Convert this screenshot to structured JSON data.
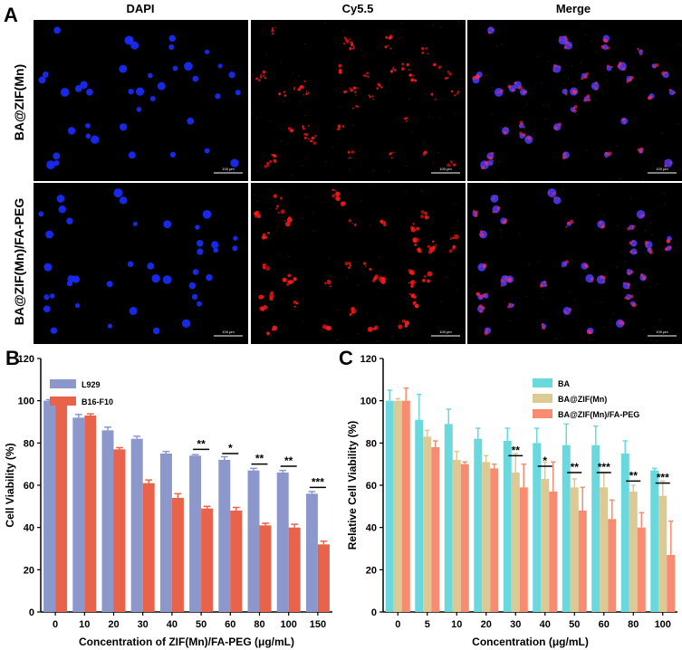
{
  "panel_a": {
    "letter": "A",
    "columns": [
      "DAPI",
      "Cy5.5",
      "Merge"
    ],
    "rows": [
      "BA@ZIF(Mn)",
      "BA@ZIF(Mn)/FA-PEG"
    ],
    "scale_bar_label": "100 μm",
    "channel_colors": {
      "DAPI": "#1a2cff",
      "Cy5.5": "#ff1a1a",
      "Merge": "#c040ff"
    }
  },
  "chart_data": [
    {
      "type": "bar",
      "panel": "B",
      "categories": [
        "0",
        "10",
        "20",
        "30",
        "40",
        "50",
        "60",
        "80",
        "100",
        "150"
      ],
      "series": [
        {
          "name": "L929",
          "color": "#8c97cc",
          "values": [
            100,
            92,
            86,
            82,
            75,
            74,
            72,
            67,
            66,
            56
          ],
          "errors": [
            0.5,
            1.5,
            1.5,
            1.2,
            1.0,
            0.5,
            1.5,
            1.0,
            1.0,
            1.0
          ]
        },
        {
          "name": "B16-F10",
          "color": "#e8634a",
          "values": [
            100,
            93,
            77,
            61,
            54,
            49,
            48,
            41,
            40,
            32
          ],
          "errors": [
            1.5,
            0.8,
            0.8,
            1.5,
            2.0,
            1.0,
            1.5,
            1.0,
            1.5,
            1.5
          ]
        }
      ],
      "xlabel": "Concentration of ZIF(Mn)/FA-PEG (μg/mL)",
      "ylabel": "Cell Viability (%)",
      "ylim": [
        0,
        120
      ],
      "yticks": [
        0,
        20,
        40,
        60,
        80,
        100,
        120
      ],
      "legend": "top-left",
      "significance": [
        {
          "category": "50",
          "label": "**",
          "y": 77
        },
        {
          "category": "60",
          "label": "*",
          "y": 75
        },
        {
          "category": "80",
          "label": "**",
          "y": 70
        },
        {
          "category": "100",
          "label": "**",
          "y": 69
        },
        {
          "category": "150",
          "label": "***",
          "y": 59
        }
      ]
    },
    {
      "type": "bar",
      "panel": "C",
      "categories": [
        "0",
        "5",
        "10",
        "20",
        "30",
        "40",
        "50",
        "60",
        "80",
        "100"
      ],
      "series": [
        {
          "name": "BA",
          "color": "#6ad9de",
          "values": [
            100,
            91,
            89,
            82,
            81,
            80,
            79,
            79,
            75,
            67
          ],
          "errors": [
            5,
            12,
            7,
            5,
            6,
            7,
            10,
            9,
            6,
            1
          ]
        },
        {
          "name": "BA@ZIF(Mn)",
          "color": "#ddc993",
          "values": [
            100,
            83,
            72,
            71,
            66,
            63,
            59,
            59,
            57,
            55
          ],
          "errors": [
            1,
            3,
            4,
            3,
            9,
            8,
            4,
            7,
            3,
            7
          ]
        },
        {
          "name": "BA@ZIF(Mn)/FA-PEG",
          "color": "#f88c70",
          "values": [
            100,
            78,
            70,
            68,
            59,
            57,
            48,
            44,
            40,
            27
          ],
          "errors": [
            6,
            3,
            1,
            2,
            11,
            14,
            11,
            9,
            7,
            16
          ]
        }
      ],
      "xlabel": "Concentration (μg/mL)",
      "ylabel": "Relative Cell Viability (%)",
      "ylim": [
        0,
        120
      ],
      "yticks": [
        0,
        20,
        40,
        60,
        80,
        100,
        120
      ],
      "legend": "top-right",
      "significance": [
        {
          "category": "30",
          "label": "**",
          "y": 74
        },
        {
          "category": "40",
          "label": "*",
          "y": 69
        },
        {
          "category": "50",
          "label": "**",
          "y": 66
        },
        {
          "category": "60",
          "label": "***",
          "y": 66
        },
        {
          "category": "80",
          "label": "**",
          "y": 62
        },
        {
          "category": "100",
          "label": "***",
          "y": 61
        }
      ]
    }
  ]
}
